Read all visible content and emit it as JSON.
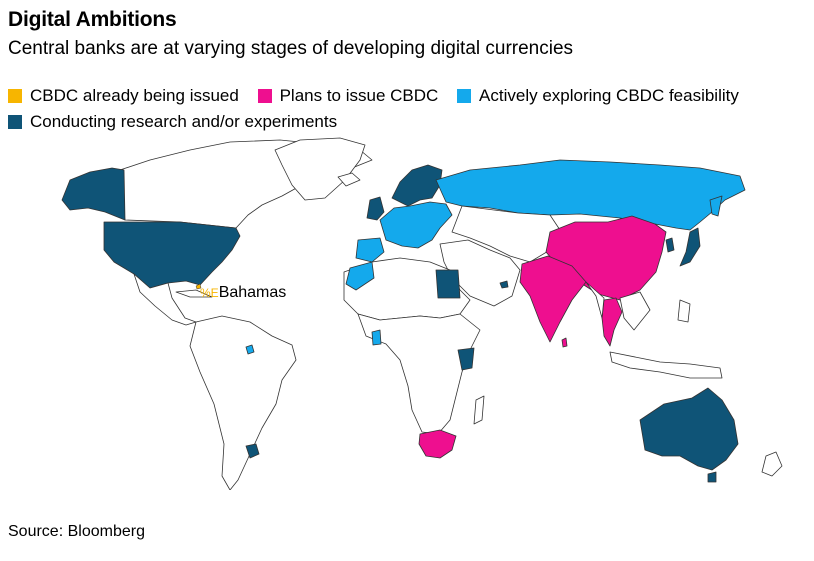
{
  "title": "Digital Ambitions",
  "subtitle": "Central banks are at varying stages of developing digital currencies",
  "legend": [
    {
      "label": "CBDC already being issued",
      "color": "#f7b500"
    },
    {
      "label": "Plans to issue CBDC",
      "color": "#ee0f8f"
    },
    {
      "label": "Actively exploring CBDC feasibility",
      "color": "#14a9ec"
    },
    {
      "label": "Conducting research and/or experiments",
      "color": "#0f5477"
    }
  ],
  "annotation": {
    "code": "%E",
    "label": "Bahamas",
    "code_color": "#f7b500"
  },
  "source": "Source: Bloomberg",
  "map_colors": {
    "none": "#ffffff",
    "border": "#333333",
    "issued": "#f7b500",
    "plans": "#ee0f8f",
    "exploring": "#14a9ec",
    "research": "#0f5477"
  }
}
